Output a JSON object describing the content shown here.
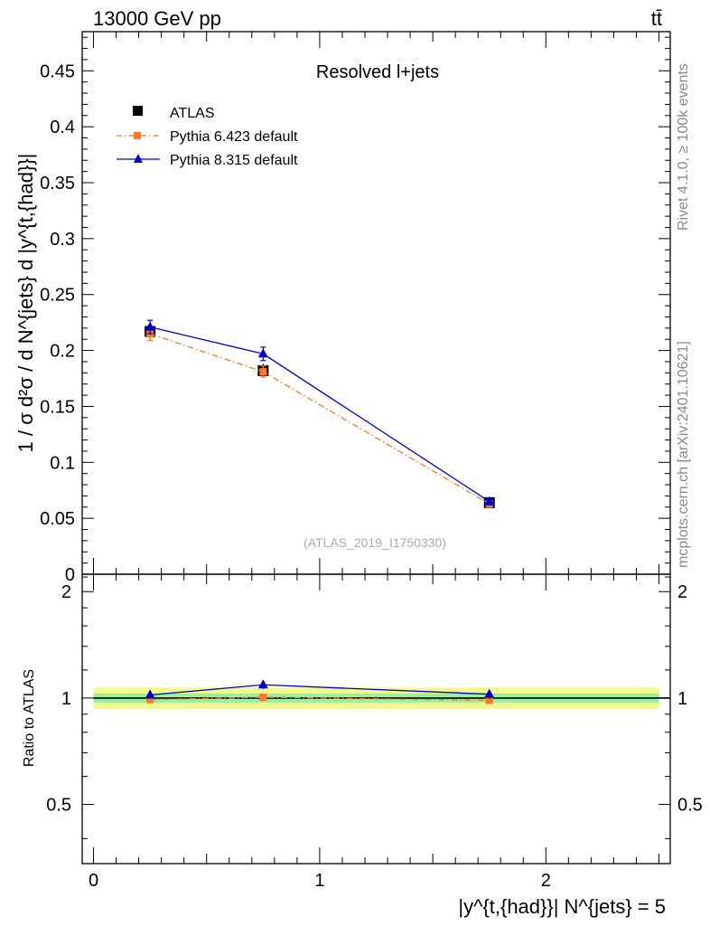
{
  "header": {
    "left": "13000 GeV pp",
    "right": "tt̄"
  },
  "side": {
    "rivet": "Rivet 4.1.0, ≥ 100k events",
    "mcplots": "mcplots.cern.ch [arXiv:2401.10621]"
  },
  "chart_data": [
    {
      "type": "line",
      "panel": "main",
      "title": "Resolved l+jets",
      "watermark": "(ATLAS_2019_I1750330)",
      "ylabel": "1 / σ d²σ / d N^{jets} d |y^{t,{had}}|",
      "ylim": [
        0,
        0.485
      ],
      "yticks": [
        0,
        0.05,
        0.1,
        0.15,
        0.2,
        0.25,
        0.3,
        0.35,
        0.4,
        0.45
      ],
      "ytick_labels": [
        "0",
        "0.05",
        "0.1",
        "0.15",
        "0.2",
        "0.25",
        "0.3",
        "0.35",
        "0.4",
        "0.45"
      ],
      "xlim": [
        -0.05,
        2.55
      ],
      "x": [
        0.25,
        0.75,
        1.75
      ],
      "series": [
        {
          "name": "ATLAS",
          "color": "#000000",
          "marker": "square",
          "values": [
            0.217,
            0.182,
            0.064
          ],
          "errors": [
            0.007,
            0.006,
            0.003
          ]
        },
        {
          "name": "Pythia 6.423 default",
          "color": "#ff7722",
          "marker": "square-small",
          "dash": "dashdot",
          "values": [
            0.215,
            0.181,
            0.063
          ],
          "errors": [
            0.006,
            0.005,
            0.003
          ]
        },
        {
          "name": "Pythia 8.315 default",
          "color": "#0000cc",
          "marker": "triangle",
          "values": [
            0.221,
            0.197,
            0.065
          ],
          "errors": [
            0.006,
            0.006,
            0.003
          ]
        }
      ],
      "legend": [
        "ATLAS",
        "Pythia 6.423 default",
        "Pythia 8.315 default"
      ]
    },
    {
      "type": "line",
      "panel": "ratio",
      "ylabel": "Ratio to ATLAS",
      "ylim": [
        0.34,
        2.24
      ],
      "yticks": [
        0.5,
        1,
        2
      ],
      "ytick_labels": [
        "0.5",
        "1",
        "2"
      ],
      "xlim": [
        -0.05,
        2.55
      ],
      "xticks": [
        0,
        1,
        2
      ],
      "xtick_labels": [
        "0",
        "1",
        "2"
      ],
      "xlabel": "|y^{t,{had}}| N^{jets} = 5",
      "x": [
        0.25,
        0.75,
        1.75
      ],
      "band_inner": [
        0.03,
        0.03,
        0.03
      ],
      "band_outer": [
        0.07,
        0.07,
        0.07
      ],
      "series": [
        {
          "name": "Pythia 6.423 default",
          "color": "#ff7722",
          "values": [
            0.99,
            1.005,
            0.985
          ],
          "errors": [
            0.025,
            0.025,
            0.02
          ]
        },
        {
          "name": "Pythia 8.315 default",
          "color": "#0000cc",
          "values": [
            1.02,
            1.09,
            1.025
          ],
          "errors": [
            0.025,
            0.03,
            0.03
          ]
        }
      ]
    }
  ]
}
